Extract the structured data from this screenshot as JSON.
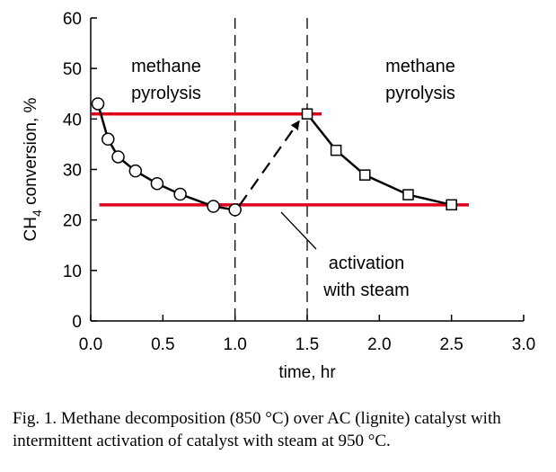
{
  "chart_data": {
    "type": "scatter",
    "xlabel": "time, hr",
    "ylabel_parts": [
      "CH",
      "4",
      " conversion, %"
    ],
    "xlim": [
      0.0,
      3.0
    ],
    "ylim": [
      0,
      60
    ],
    "xticks": [
      "0.0",
      "0.5",
      "1.0",
      "1.5",
      "2.0",
      "2.5",
      "3.0"
    ],
    "yticks": [
      "0",
      "10",
      "20",
      "30",
      "40",
      "50",
      "60"
    ],
    "series": [
      {
        "marker": "circle",
        "x": [
          0.05,
          0.12,
          0.19,
          0.31,
          0.46,
          0.62,
          0.85,
          1.0
        ],
        "y": [
          43,
          36,
          32.5,
          29.7,
          27.2,
          25.1,
          22.7,
          22.0
        ]
      },
      {
        "marker": "square",
        "x": [
          1.5,
          1.7,
          1.9,
          2.2,
          2.5
        ],
        "y": [
          41.0,
          33.8,
          28.9,
          25.0,
          23.0
        ]
      }
    ],
    "reference_lines": [
      {
        "y": 41.0,
        "x": [
          0.0,
          1.6
        ],
        "color": "#e0001a"
      },
      {
        "y": 23.0,
        "x": [
          0.06,
          2.62
        ],
        "color": "#e0001a"
      }
    ],
    "vertical_dashed_lines": [
      1.0,
      1.5
    ],
    "activation_arrow": {
      "from": [
        1.0,
        22.0
      ],
      "to": [
        1.5,
        41.0
      ]
    },
    "annotations": [
      {
        "text": [
          "methane",
          "pyrolysis"
        ]
      },
      {
        "text": [
          "methane",
          "pyrolysis"
        ]
      },
      {
        "text": [
          "activation",
          "with steam"
        ]
      }
    ]
  },
  "caption": "Fig. 1. Methane decomposition (850 °C) over AC (lignite) catalyst with intermittent activation of catalyst with steam at 950 °C."
}
